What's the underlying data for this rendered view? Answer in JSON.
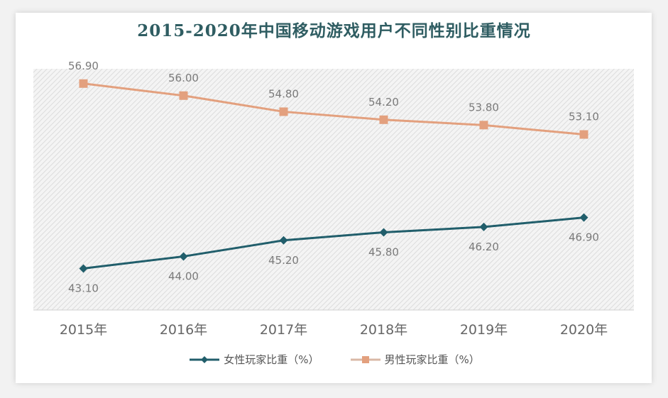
{
  "chart_data": {
    "type": "line",
    "title": "2015-2020年中国移动游戏用户不同性别比重情况",
    "categories": [
      "2015年",
      "2016年",
      "2017年",
      "2018年",
      "2019年",
      "2020年"
    ],
    "series": [
      {
        "name": "女性玩家比重（%）",
        "values": [
          43.1,
          44.0,
          45.2,
          45.8,
          46.2,
          46.9
        ],
        "labels": [
          "43.10",
          "44.00",
          "45.20",
          "45.80",
          "46.20",
          "46.90"
        ],
        "color": "#215e6b",
        "marker": "diamond",
        "label_position": "below"
      },
      {
        "name": "男性玩家比重（%）",
        "values": [
          56.9,
          56.0,
          54.8,
          54.2,
          53.8,
          53.1
        ],
        "labels": [
          "56.90",
          "56.00",
          "54.80",
          "54.20",
          "53.80",
          "53.10"
        ],
        "color": "#e3a07e",
        "marker": "square",
        "label_position": "above"
      }
    ],
    "xlabel": "",
    "ylabel": "",
    "ylim": [
      40,
      58
    ],
    "grid": false,
    "y_axis_visible": false,
    "legend": "bottom-center",
    "background": "diagonal-hatch"
  }
}
